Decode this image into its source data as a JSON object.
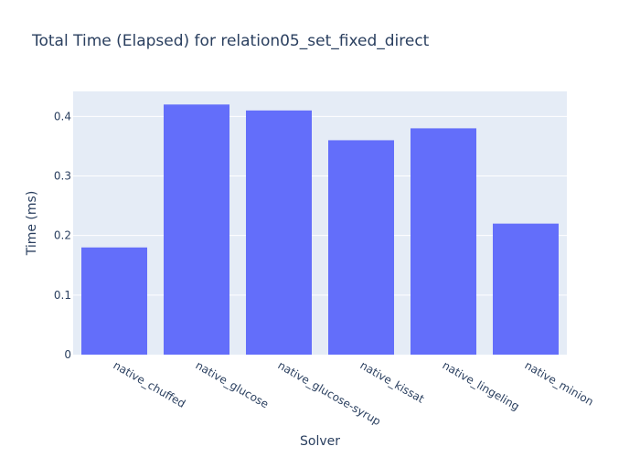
{
  "chart_data": {
    "type": "bar",
    "title": "Total Time (Elapsed) for relation05_set_fixed_direct",
    "xlabel": "Solver",
    "ylabel": "Time (ms)",
    "categories": [
      "native_chuffed",
      "native_glucose",
      "native_glucose-syrup",
      "native_kissat",
      "native_lingeling",
      "native_minion"
    ],
    "values": [
      0.18,
      0.42,
      0.41,
      0.36,
      0.38,
      0.22
    ],
    "ylim": [
      0,
      0.442
    ],
    "yticks": [
      0,
      0.1,
      0.2,
      0.3,
      0.4
    ],
    "ytick_labels": [
      "0",
      "0.1",
      "0.2",
      "0.3",
      "0.4"
    ],
    "grid": true,
    "legend": "none",
    "colors": {
      "bar": "#636efa",
      "plot_bg": "#e5ecf6",
      "grid": "#ffffff",
      "text": "#2a3f5f"
    }
  }
}
